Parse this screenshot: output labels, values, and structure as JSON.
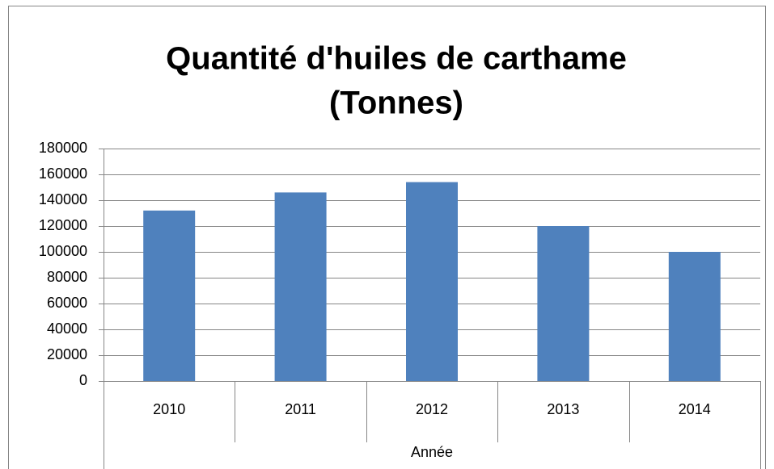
{
  "chart_data": {
    "type": "bar",
    "title": [
      "Quantité d'huiles de carthame",
      "(Tonnes)"
    ],
    "categories": [
      "2010",
      "2011",
      "2012",
      "2013",
      "2014"
    ],
    "values": [
      132000,
      146000,
      154000,
      120000,
      100000
    ],
    "color": "#4f81bd",
    "xlabel": "Année",
    "ylim": [
      0,
      180000
    ],
    "yticks": [
      0,
      20000,
      40000,
      60000,
      80000,
      100000,
      120000,
      140000,
      160000,
      180000
    ],
    "grid": true
  }
}
